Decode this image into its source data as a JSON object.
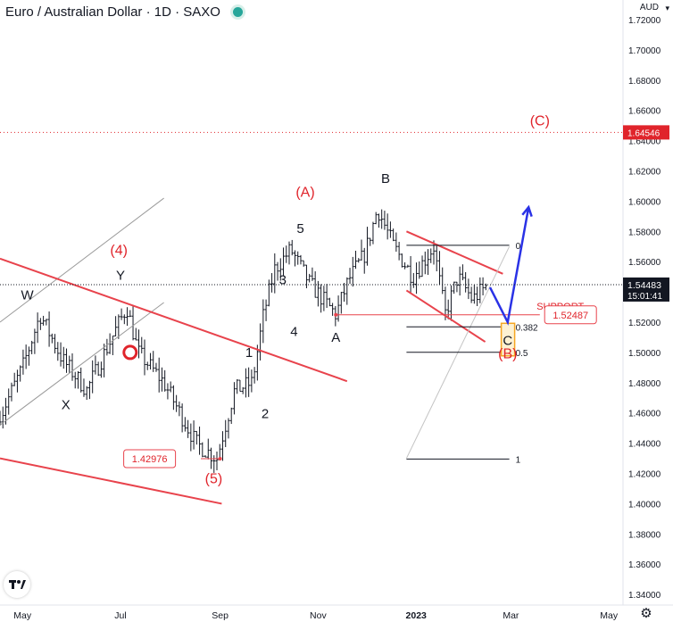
{
  "header": {
    "title": "Euro / Australian Dollar · 1D · SAXO",
    "currency": "AUD",
    "status_color": "#26a69a",
    "chart_platform_logo": "tradingview-logo-icon",
    "settings_icon": "gear-icon",
    "currency_caret_icon": "chevron-down-icon"
  },
  "colors": {
    "label_red": "#e0242b",
    "trend_red": "#e8434c",
    "projection_blue": "#2a32e6",
    "channel_gray": "#9a9a9a",
    "price_label_bg": "#131722",
    "target_box": "#f5a623"
  },
  "chart_data": {
    "type": "line",
    "chart_style": "ohlc-bars",
    "title": "Euro / Australian Dollar · 1D · SAXO",
    "xlabel": "",
    "ylabel": "",
    "x_ticks": [
      "May",
      "Jul",
      "Sep",
      "Nov",
      "2023",
      "Mar",
      "May"
    ],
    "y_ticks": [
      "1.72000",
      "1.70000",
      "1.68000",
      "1.66000",
      "1.64000",
      "1.62000",
      "1.60000",
      "1.58000",
      "1.56000",
      "1.54000",
      "1.52000",
      "1.50000",
      "1.48000",
      "1.46000",
      "1.44000",
      "1.42000",
      "1.40000",
      "1.38000",
      "1.36000",
      "1.34000"
    ],
    "ylim": [
      1.333,
      1.733
    ],
    "xlim": [
      "2022-04-17",
      "2023-05-31"
    ],
    "grid": false,
    "series": [
      {
        "values_x": [
          "2022-04-18",
          "2022-05-01",
          "2022-05-12",
          "2022-05-26",
          "2022-06-10",
          "2022-06-28",
          "2022-07-05",
          "2022-07-12",
          "2022-07-28",
          "2022-08-17",
          "2022-08-30",
          "2022-09-10",
          "2022-09-21",
          "2022-09-28",
          "2022-10-05",
          "2022-10-15",
          "2022-10-27",
          "2022-11-12",
          "2022-11-20",
          "2022-11-30",
          "2022-12-08",
          "2022-12-18",
          "2022-12-30",
          "2023-01-12",
          "2023-01-19",
          "2023-01-27",
          "2023-02-05",
          "2023-02-15"
        ],
        "values_y": [
          1.46,
          1.49,
          1.525,
          1.495,
          1.475,
          1.515,
          1.53,
          1.5,
          1.48,
          1.44,
          1.43,
          1.475,
          1.48,
          1.525,
          1.555,
          1.568,
          1.545,
          1.525,
          1.548,
          1.565,
          1.595,
          1.57,
          1.55,
          1.57,
          1.525,
          1.55,
          1.535,
          1.545
        ]
      }
    ],
    "current_price": {
      "value": 1.54483,
      "label": "1.54483",
      "countdown": "15:01:41"
    },
    "levels": [
      {
        "name": "(C) target",
        "value": 1.64546,
        "label": "1.64546",
        "style": "dotted"
      },
      {
        "name": "support",
        "value": 1.52487,
        "label": "1.52487",
        "caption": "SUPPORT"
      },
      {
        "name": "low (5)",
        "value": 1.42976,
        "label": "1.42976"
      }
    ],
    "fibonacci": [
      {
        "ratio_label": "0",
        "value": 1.5708
      },
      {
        "ratio_label": "0.382",
        "value": 1.5169
      },
      {
        "ratio_label": "0.5",
        "value": 1.5001
      },
      {
        "ratio_label": "1",
        "value": 1.4295
      }
    ],
    "wave_labels": [
      {
        "text": "W",
        "x": "2022-05-04",
        "y": 1.535,
        "color": "black"
      },
      {
        "text": "X",
        "x": "2022-05-28",
        "y": 1.4625,
        "color": "black"
      },
      {
        "text": "Y",
        "x": "2022-07-01",
        "y": 1.548,
        "color": "black"
      },
      {
        "text": "(4)",
        "x": "2022-06-30",
        "y": 1.5645,
        "color": "red"
      },
      {
        "text": "(5)",
        "x": "2022-08-28",
        "y": 1.4135,
        "color": "red"
      },
      {
        "text": "1",
        "x": "2022-09-19",
        "y": 1.497,
        "color": "black"
      },
      {
        "text": "2",
        "x": "2022-09-29",
        "y": 1.4565,
        "color": "black"
      },
      {
        "text": "3",
        "x": "2022-10-10",
        "y": 1.545,
        "color": "black"
      },
      {
        "text": "4",
        "x": "2022-10-17",
        "y": 1.511,
        "color": "black"
      },
      {
        "text": "5",
        "x": "2022-10-21",
        "y": 1.579,
        "color": "black"
      },
      {
        "text": "(A)",
        "x": "2022-10-24",
        "y": 1.603,
        "color": "red"
      },
      {
        "text": "A",
        "x": "2022-11-12",
        "y": 1.507,
        "color": "black"
      },
      {
        "text": "B",
        "x": "2022-12-13",
        "y": 1.612,
        "color": "black"
      },
      {
        "text": "C",
        "x": "2023-02-27",
        "y": 1.505,
        "color": "black"
      },
      {
        "text": "(B)",
        "x": "2023-02-27",
        "y": 1.496,
        "color": "red"
      },
      {
        "text": "(C)",
        "x": "2023-03-19",
        "y": 1.65,
        "color": "red"
      }
    ],
    "projection": [
      {
        "x": "2023-02-16",
        "y": 1.543
      },
      {
        "x": "2023-02-27",
        "y": 1.52
      },
      {
        "x": "2023-03-12",
        "y": 1.596
      }
    ],
    "trendlines": [
      {
        "name": "upper channel",
        "points": [
          [
            "2022-04-17",
            1.52
          ],
          [
            "2022-07-28",
            1.602
          ]
        ]
      },
      {
        "name": "lower channel",
        "points": [
          [
            "2022-04-17",
            1.452
          ],
          [
            "2022-07-28",
            1.533
          ]
        ]
      },
      {
        "name": "red resistance",
        "points": [
          [
            "2022-04-17",
            1.562
          ],
          [
            "2022-11-19",
            1.481
          ]
        ]
      },
      {
        "name": "red base",
        "points": [
          [
            "2022-04-17",
            1.43
          ],
          [
            "2022-09-02",
            1.4
          ]
        ]
      },
      {
        "name": "wedge upper",
        "points": [
          [
            "2022-12-26",
            1.58
          ],
          [
            "2023-02-24",
            1.552
          ]
        ]
      },
      {
        "name": "wedge lower",
        "points": [
          [
            "2022-12-26",
            1.541
          ],
          [
            "2023-02-13",
            1.507
          ]
        ]
      },
      {
        "name": "fib diagonal",
        "points": [
          [
            "2022-12-26",
            1.43
          ],
          [
            "2023-02-28",
            1.57
          ]
        ]
      }
    ]
  }
}
